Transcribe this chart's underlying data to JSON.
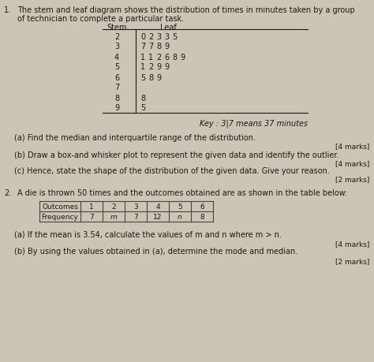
{
  "title_num": "1.",
  "q1_intro": "The stem and leaf diagram shows the distribution of times in minutes taken by a group",
  "q1_intro2": "of technician to complete a particular task.",
  "stem_header": "Stem",
  "leaf_header": "Leaf",
  "stem_leaf": [
    {
      "stem": "2",
      "leaves": [
        "0",
        "2",
        "3",
        "3",
        "5"
      ]
    },
    {
      "stem": "3",
      "leaves": [
        "7",
        "7",
        "8",
        "9"
      ]
    },
    {
      "stem": "4",
      "leaves": [
        "1",
        "1",
        "2",
        "6",
        "8",
        "9"
      ]
    },
    {
      "stem": "5",
      "leaves": [
        "1",
        "2",
        "9",
        "9"
      ]
    },
    {
      "stem": "6",
      "leaves": [
        "5",
        "8",
        "9"
      ]
    },
    {
      "stem": "7",
      "leaves": []
    },
    {
      "stem": "8",
      "leaves": [
        "8"
      ]
    },
    {
      "stem": "9",
      "leaves": [
        "5"
      ]
    }
  ],
  "key_text": "Key : 3|7 means 37 minutes",
  "q1a": "(a) Find the median and interquartile range of the distribution.",
  "q1a_marks": "[4 marks]",
  "q1b": "(b) Draw a box-and whisker plot to represent the given data and identify the outlier.",
  "q1b_marks": "[4 marks]",
  "q1c": "(c) Hence, state the shape of the distribution of the given data. Give your reason.",
  "q1c_marks": "[2 marks]",
  "title_num2": "2.",
  "q2_text": "A die is thrown 50 times and the outcomes obtained are as shown in the table below:",
  "table_headers": [
    "Outcomes",
    "1",
    "2",
    "3",
    "4",
    "5",
    "6"
  ],
  "table_row": [
    "Frequency",
    "7",
    "m",
    "7",
    "12",
    "n",
    "8"
  ],
  "q2a": "(a) If the mean is 3.54, calculate the values of m and n where m > n.",
  "q2a_marks": "[4 marks]",
  "q2b": "(b) By using the values obtained in (a), determine the mode and median.",
  "q2b_marks": "[2 marks]",
  "bg_color": "#ccc4b4",
  "text_color": "#1a1a1a",
  "table_border": "#444444",
  "font_size": 7.0,
  "small_font": 6.5
}
